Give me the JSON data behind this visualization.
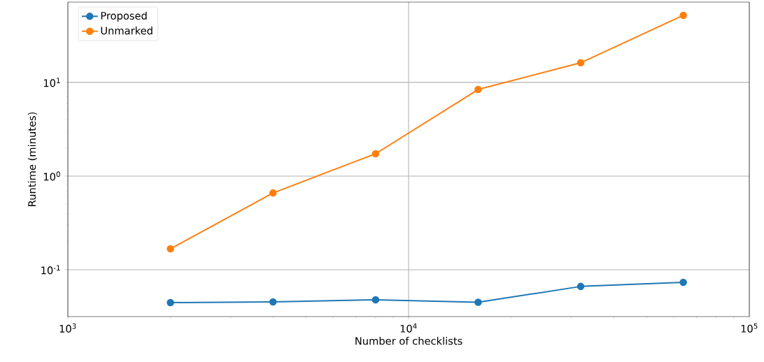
{
  "chart_data": {
    "type": "line",
    "xlabel": "Number of checklists",
    "ylabel": "Runtime (minutes)",
    "x": [
      2000,
      4000,
      8000,
      16000,
      32000,
      64000
    ],
    "series": [
      {
        "name": "Proposed",
        "color": "#1f77b4",
        "values": [
          0.0446,
          0.0453,
          0.0477,
          0.0449,
          0.0663,
          0.0734
        ]
      },
      {
        "name": "Unmarked",
        "color": "#ff7f0e",
        "values": [
          0.167,
          0.66,
          1.73,
          8.4,
          16.2,
          52
        ]
      }
    ],
    "xlim": [
      1000,
      100000
    ],
    "ylim": [
      0.0316,
      72
    ],
    "xticks": [
      {
        "value": 1000,
        "label": "10$^{3}$"
      },
      {
        "value": 10000,
        "label": "10$^{4}$"
      },
      {
        "value": 100000,
        "label": "10$^{5}$"
      }
    ],
    "yticks": [
      {
        "value": 0.1,
        "label": "10$^{-1}$"
      },
      {
        "value": 1,
        "label": "10$^{0}$"
      },
      {
        "value": 10,
        "label": "10$^{1}$"
      }
    ],
    "log": "xy",
    "grid": true,
    "legend": "top left",
    "marker": "circle",
    "line_style": "solid"
  }
}
